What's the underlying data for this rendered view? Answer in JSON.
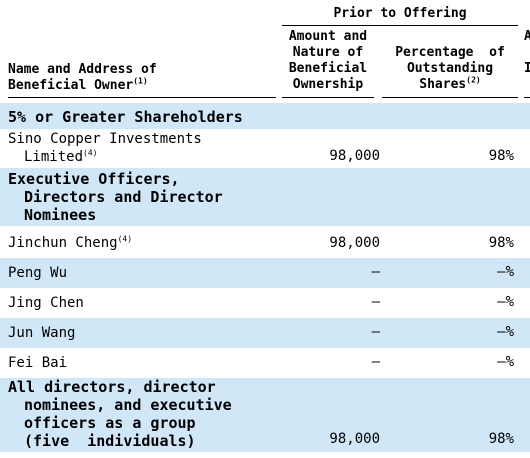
{
  "colors": {
    "band": "#cfe7f7"
  },
  "header": {
    "group_label": "Prior to Offering",
    "col_name_line1": "Name and Address of",
    "col_name_line2": "Beneficial Owner",
    "col_name_note": "(1)",
    "col_amount": [
      "Amount and",
      "Nature of",
      "Beneficial",
      "Ownership"
    ],
    "col_pct": [
      "Percentage  of",
      "Outstanding",
      "Shares"
    ],
    "col_pct_note": "(2)",
    "next_col_fragment": [
      "A",
      "I"
    ]
  },
  "sections": {
    "major": "5% or Greater Shareholders",
    "officers": [
      "Executive Officers,",
      "Directors and Director",
      "Nominees"
    ]
  },
  "rows": [
    {
      "name_line1": "Sino Copper Investments",
      "name_line2": "Limited",
      "note": "(4)",
      "amount": "98,000",
      "pct": "98%"
    },
    {
      "name": "Jinchun Cheng",
      "note": "(4)",
      "amount": "98,000",
      "pct": "98%"
    },
    {
      "name": "Peng Wu",
      "amount": "—",
      "pct": "—%"
    },
    {
      "name": "Jing Chen",
      "amount": "—",
      "pct": "—%"
    },
    {
      "name": "Jun Wang",
      "amount": "—",
      "pct": "—%"
    },
    {
      "name": "Fei Bai",
      "amount": "—",
      "pct": "—%"
    }
  ],
  "total": {
    "lines": [
      "All directors, director",
      "nominees, and executive",
      "officers as a group",
      "(five  individuals)"
    ],
    "amount": "98,000",
    "pct": "98%"
  }
}
